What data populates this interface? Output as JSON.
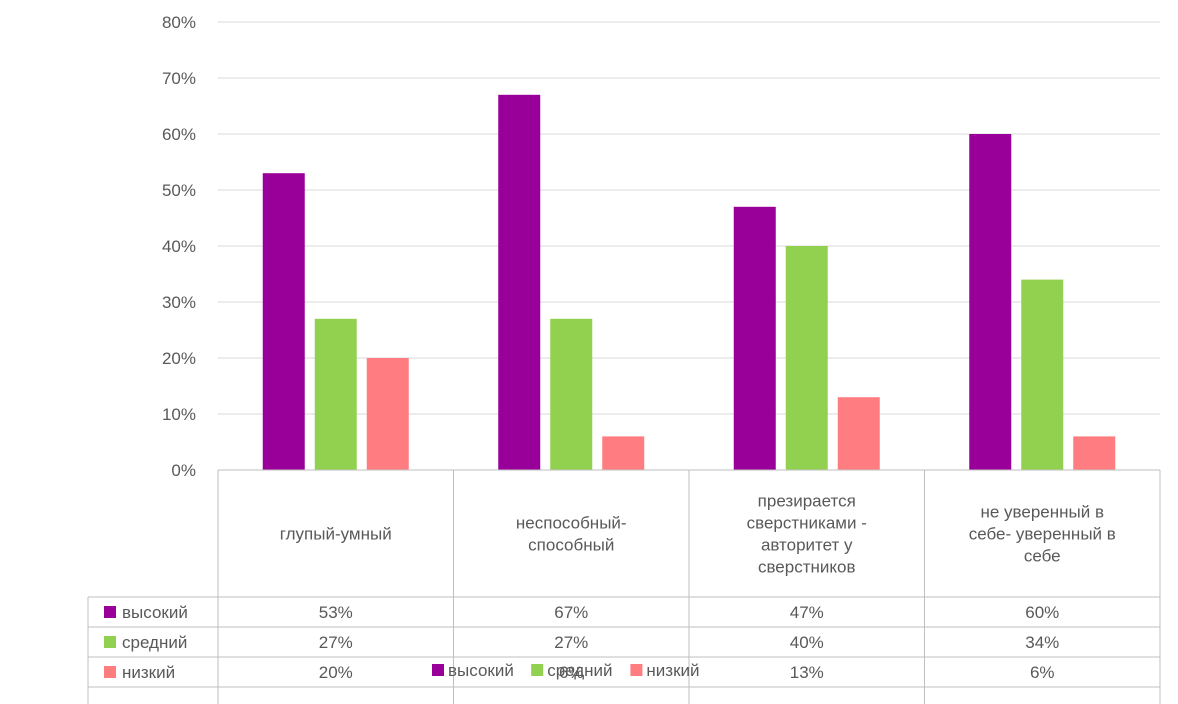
{
  "chart_data": {
    "type": "bar",
    "title": "",
    "categories": [
      "глупый-умный",
      "неспособный-\nспособный",
      "презирается\nсверстниками -\nавторитет у\nсверстников",
      "не уверенный в\nсебе- уверенный в\nсебе"
    ],
    "series": [
      {
        "name": "высокий",
        "color": "#990099",
        "values": [
          53,
          67,
          47,
          60
        ],
        "labels": [
          "53%",
          "67%",
          "47%",
          "60%"
        ]
      },
      {
        "name": "средний",
        "color": "#92D050",
        "values": [
          27,
          27,
          40,
          34
        ],
        "labels": [
          "27%",
          "27%",
          "40%",
          "34%"
        ]
      },
      {
        "name": "низкий",
        "color": "#FF7C80",
        "values": [
          20,
          6,
          13,
          6
        ],
        "labels": [
          "20%",
          "6%",
          "13%",
          "6%"
        ]
      }
    ],
    "yticks": [
      "0%",
      "10%",
      "20%",
      "30%",
      "40%",
      "50%",
      "60%",
      "70%",
      "80%"
    ],
    "ylim": [
      0,
      80
    ],
    "grid": true,
    "legend": "bottom-center",
    "data_table": true
  }
}
